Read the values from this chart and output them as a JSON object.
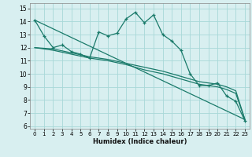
{
  "xlabel": "Humidex (Indice chaleur)",
  "bg_color": "#d8eff0",
  "grid_color": "#a8d8d8",
  "line_color": "#1a7a6a",
  "xlim": [
    -0.5,
    23.5
  ],
  "ylim": [
    5.8,
    15.4
  ],
  "xticks": [
    0,
    1,
    2,
    3,
    4,
    5,
    6,
    7,
    8,
    9,
    10,
    11,
    12,
    13,
    14,
    15,
    16,
    17,
    18,
    19,
    20,
    21,
    22,
    23
  ],
  "yticks": [
    6,
    7,
    8,
    9,
    10,
    11,
    12,
    13,
    14,
    15
  ],
  "line1_x": [
    0,
    1,
    2,
    3,
    4,
    5,
    6,
    7,
    8,
    9,
    10,
    11,
    12,
    13,
    14,
    15,
    16,
    17,
    18,
    19,
    20,
    21,
    22,
    23
  ],
  "line1_y": [
    14.1,
    12.9,
    12.0,
    12.2,
    11.7,
    11.5,
    11.2,
    13.2,
    12.9,
    13.1,
    14.2,
    14.7,
    13.9,
    14.5,
    13.0,
    12.5,
    11.8,
    10.0,
    9.1,
    9.1,
    9.3,
    8.3,
    7.9,
    6.4
  ],
  "line2_x": [
    0,
    23
  ],
  "line2_y": [
    14.1,
    6.5
  ],
  "line3_x": [
    0,
    2,
    4,
    6,
    8,
    10,
    12,
    14,
    16,
    18,
    19,
    20,
    21,
    22,
    23
  ],
  "line3_y": [
    12.0,
    11.8,
    11.5,
    11.2,
    11.0,
    10.7,
    10.3,
    10.0,
    9.6,
    9.2,
    9.1,
    9.0,
    8.8,
    8.5,
    6.5
  ],
  "line4_x": [
    0,
    2,
    4,
    6,
    8,
    10,
    12,
    14,
    16,
    18,
    19,
    20,
    21,
    22,
    23
  ],
  "line4_y": [
    12.0,
    11.9,
    11.6,
    11.3,
    11.1,
    10.8,
    10.5,
    10.2,
    9.8,
    9.4,
    9.3,
    9.2,
    9.0,
    8.7,
    6.5
  ]
}
